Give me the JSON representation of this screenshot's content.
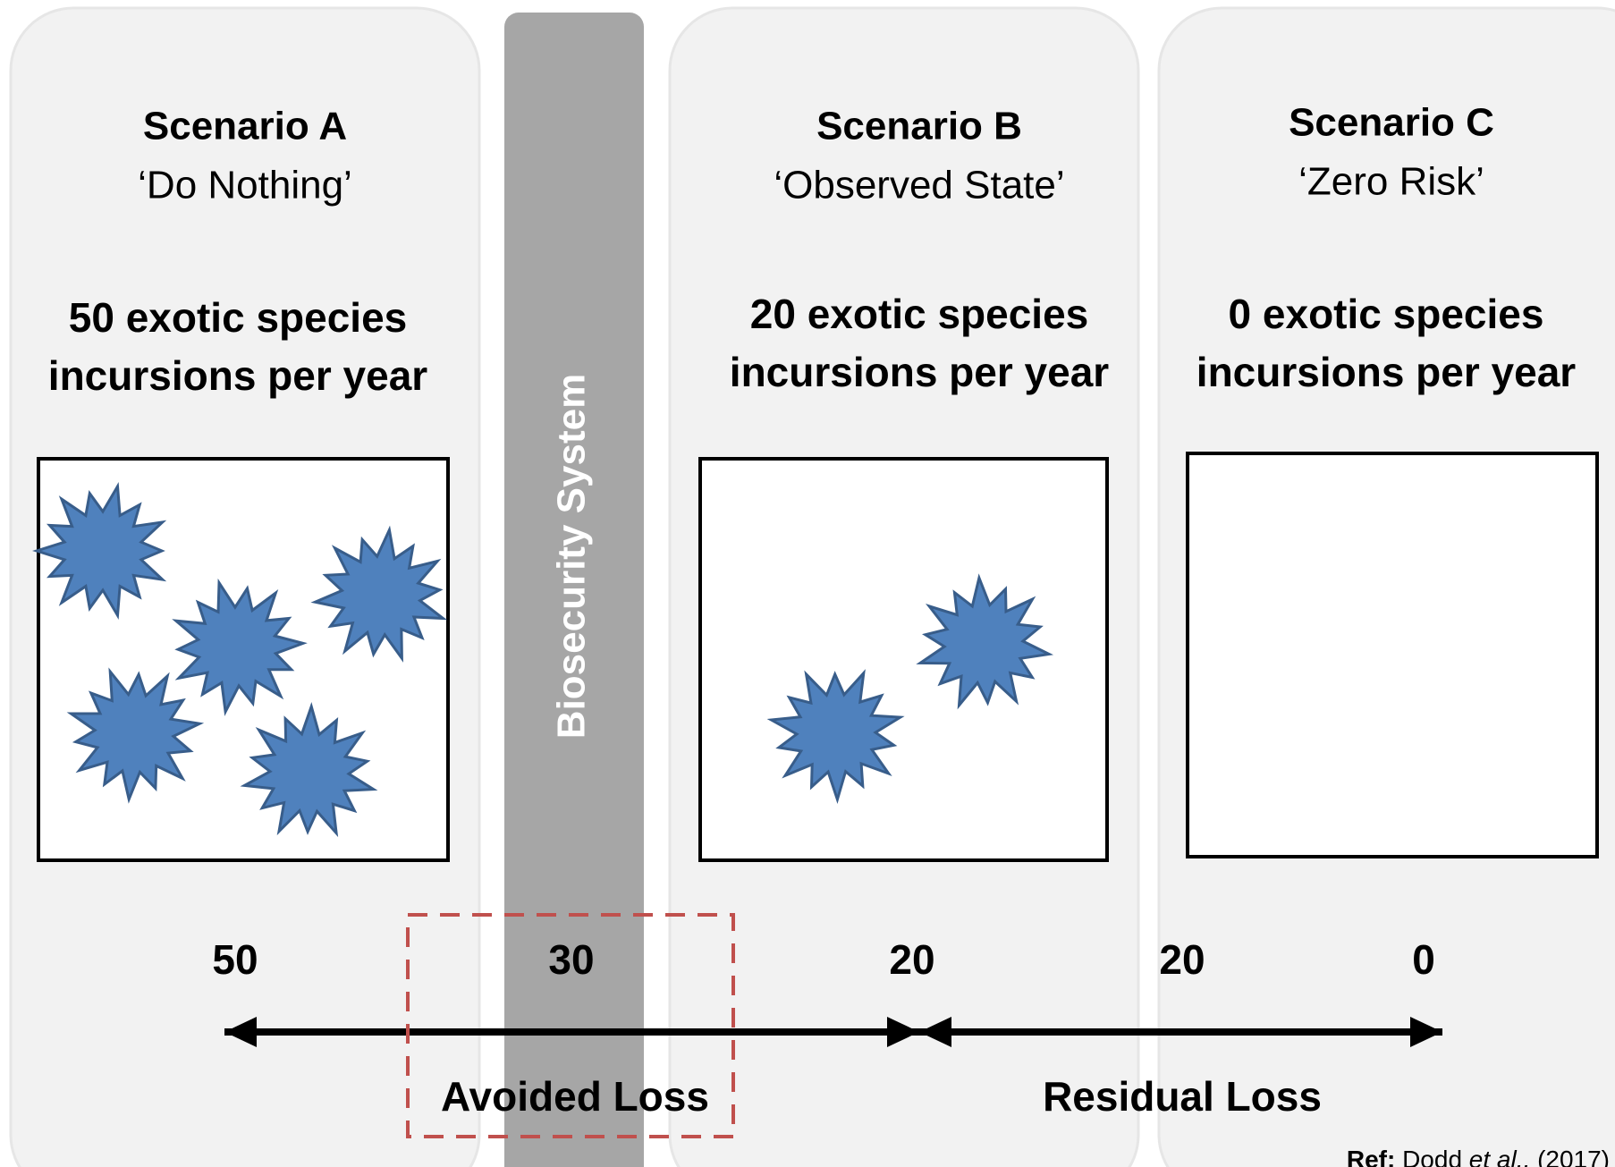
{
  "scenarios": [
    {
      "title": "Scenario A",
      "subtitle": "‘Do Nothing’",
      "description": [
        "50 exotic species",
        "incursions per year"
      ]
    },
    {
      "title": "Scenario B",
      "subtitle": "‘Observed State’",
      "description": [
        "20 exotic species",
        "incursions per year"
      ]
    },
    {
      "title": "Scenario C",
      "subtitle": "‘Zero Risk’",
      "description": [
        "0 exotic species",
        "incursions per year"
      ]
    }
  ],
  "band_label": "Biosecurity System",
  "scale_numbers": [
    "50",
    "30",
    "20",
    "20",
    "0"
  ],
  "avoided_loss": "Avoided Loss",
  "residual_loss": "Residual Loss",
  "ref": {
    "label": "Ref:",
    "author": "Dodd",
    "etal": "et al.,",
    "year": "(2017)"
  }
}
